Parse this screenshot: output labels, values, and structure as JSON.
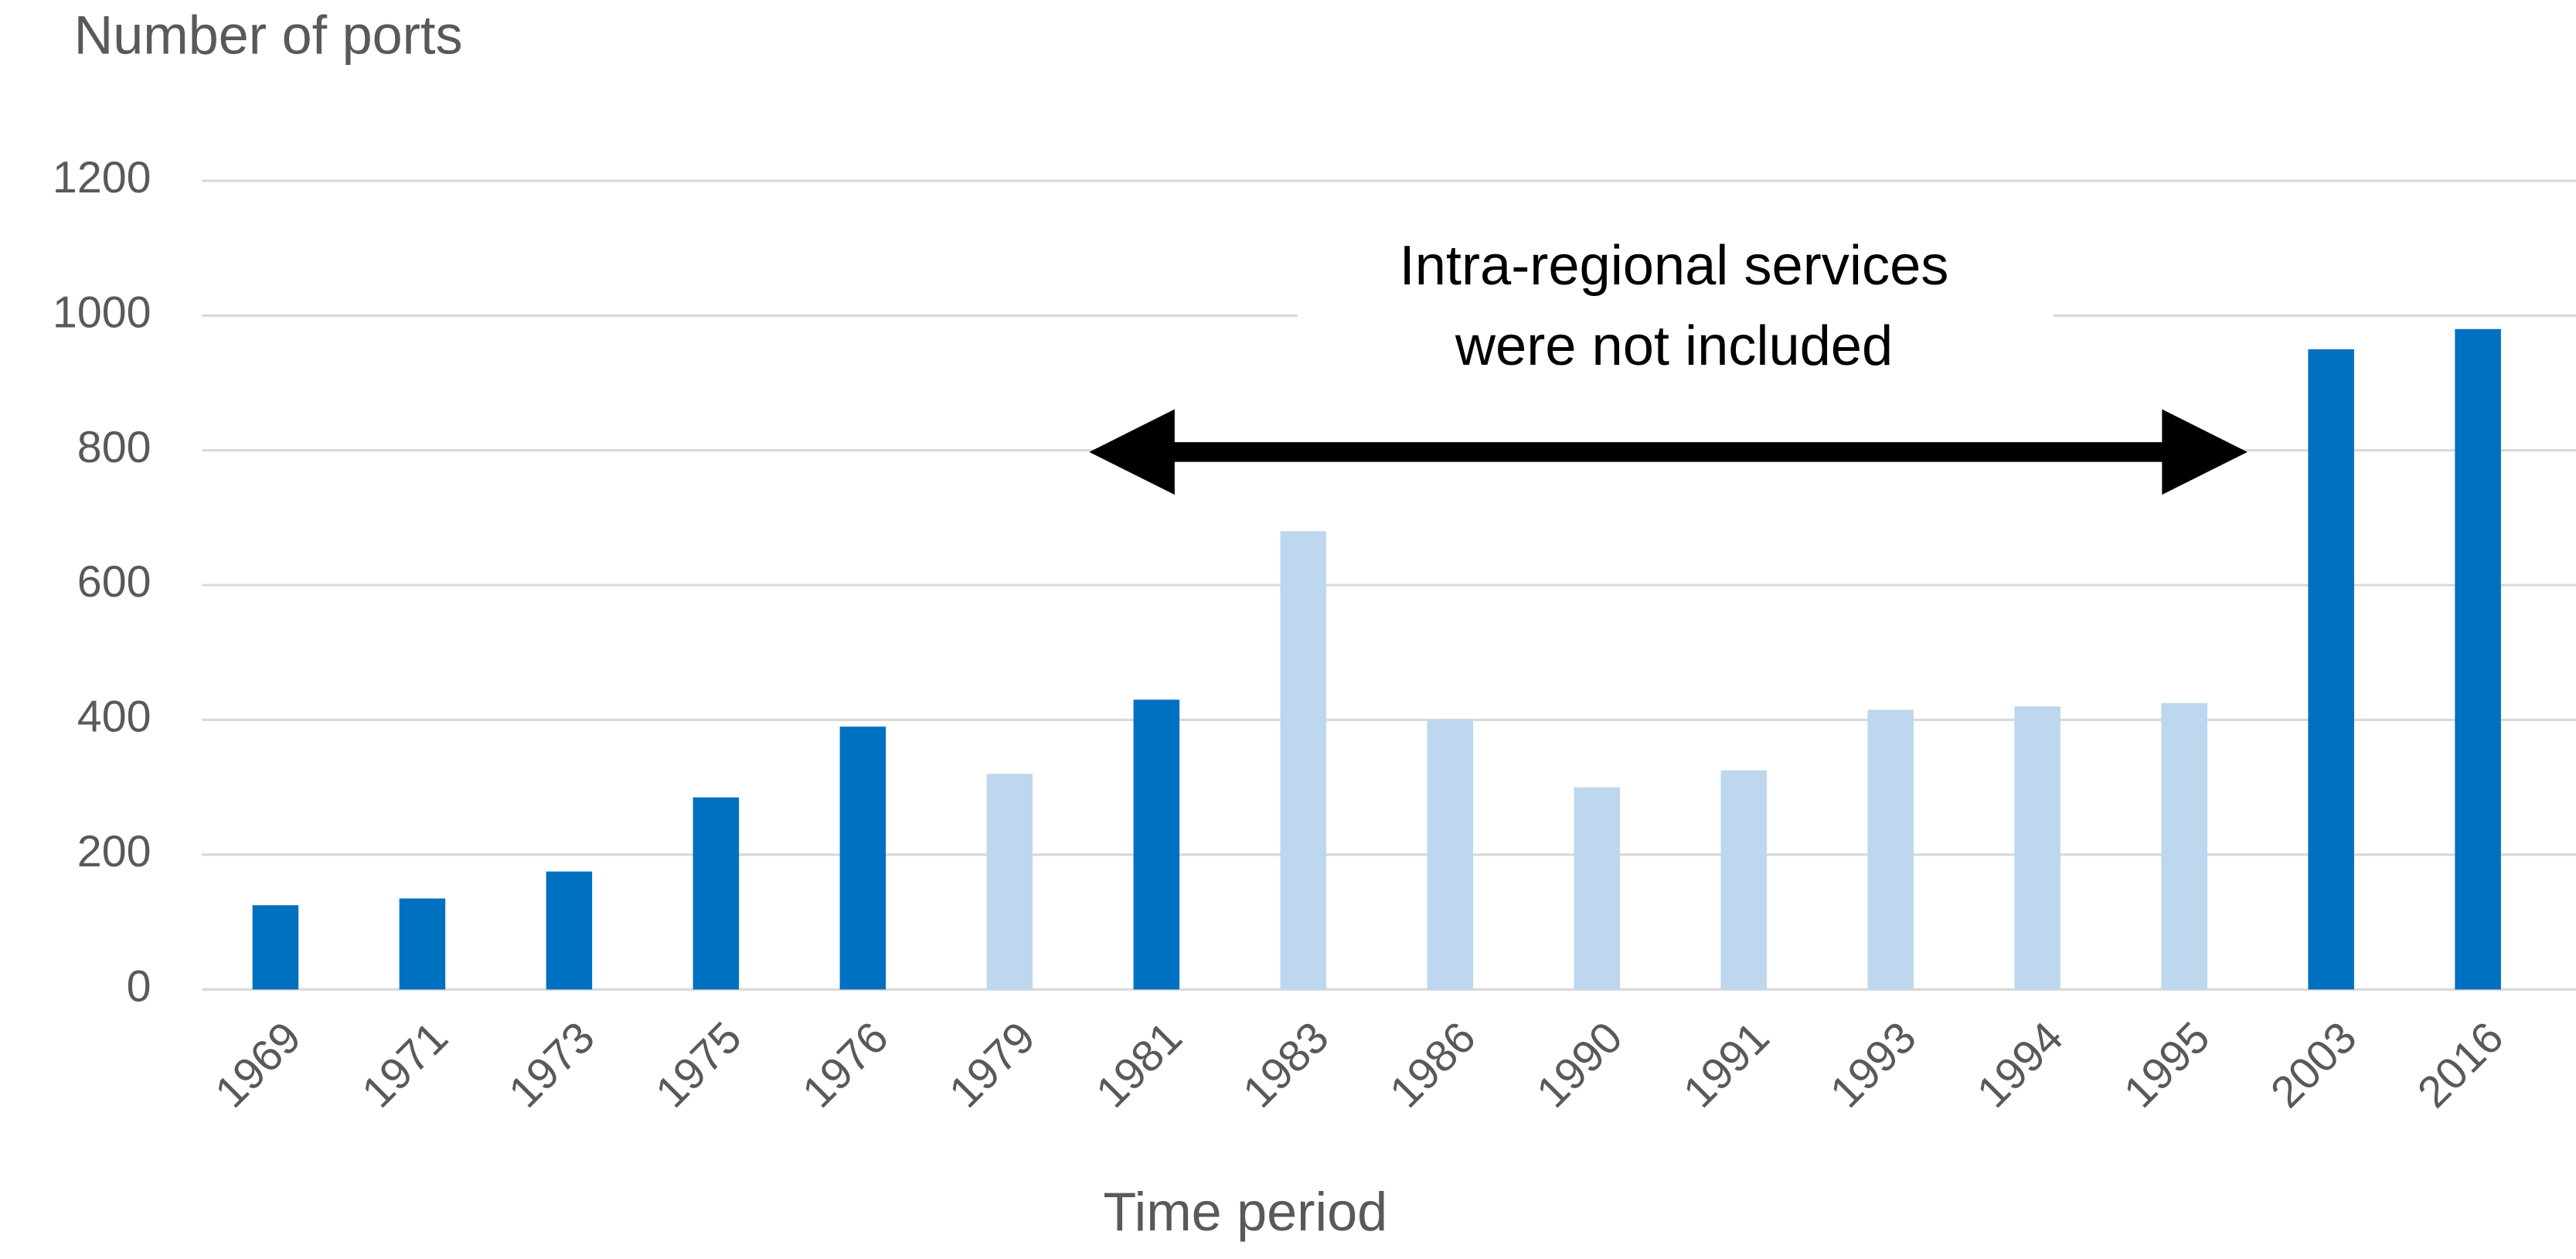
{
  "chart_data": {
    "type": "bar",
    "title": "Number of ports",
    "x_label": "Time period",
    "annotation": [
      "Intra-regional services",
      "were not included"
    ],
    "categories": [
      "1969",
      "1971",
      "1973",
      "1975",
      "1976",
      "1979",
      "1981",
      "1983",
      "1986",
      "1990",
      "1991",
      "1993",
      "1994",
      "1995",
      "2003",
      "2016"
    ],
    "values": [
      125,
      135,
      175,
      285,
      390,
      320,
      430,
      680,
      400,
      300,
      325,
      415,
      420,
      425,
      950,
      980
    ],
    "colors": [
      "#0070c0",
      "#0070c0",
      "#0070c0",
      "#0070c0",
      "#0070c0",
      "#bdd7ee",
      "#0070c0",
      "#bdd7ee",
      "#bdd7ee",
      "#bdd7ee",
      "#bdd7ee",
      "#bdd7ee",
      "#bdd7ee",
      "#bdd7ee",
      "#0070c0",
      "#0070c0"
    ],
    "ylim": [
      0,
      1200
    ],
    "yticks": [
      0,
      200,
      400,
      600,
      800,
      1000,
      1200
    ],
    "grid": true
  }
}
